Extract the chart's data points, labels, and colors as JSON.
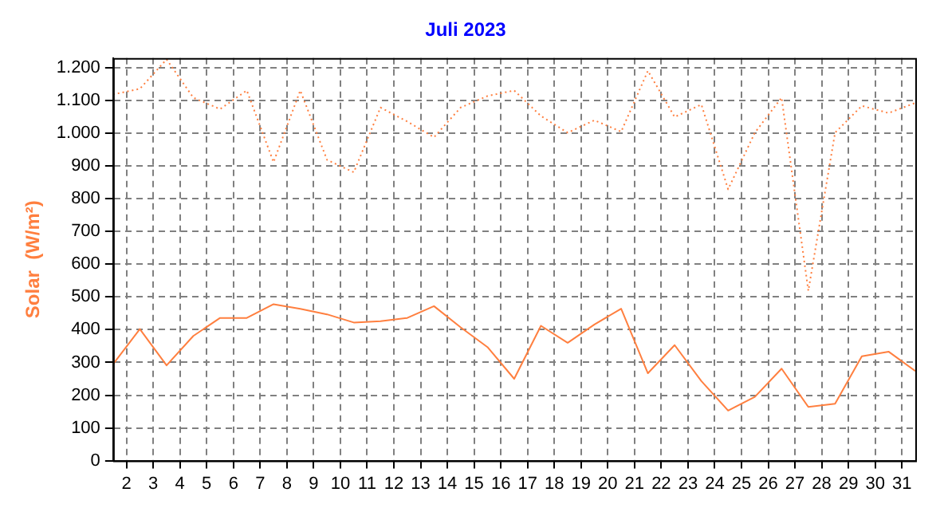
{
  "chart_data": {
    "type": "line",
    "title": "Juli 2023",
    "ylabel": "Solar  (W/m²)",
    "x": [
      1.5,
      2.5,
      3.5,
      4.5,
      5.5,
      6.5,
      7.5,
      8.5,
      9.5,
      10.5,
      11.5,
      12.5,
      13.5,
      14.5,
      15.5,
      16.5,
      17.5,
      18.5,
      19.5,
      20.5,
      21.5,
      22.5,
      23.5,
      24.5,
      25.5,
      26.5,
      27.5,
      28.5,
      29.5,
      30.5,
      31.5
    ],
    "series": [
      {
        "color": "#ff7f3f",
        "line_style": "dotted",
        "values": [
          1119,
          1136,
          1226,
          1109,
          1074,
          1131,
          912,
          1131,
          919,
          881,
          1079,
          1036,
          988,
          1079,
          1114,
          1131,
          1053,
          1002,
          1040,
          1005,
          1191,
          1050,
          1088,
          829,
          1002,
          1109,
          519,
          1002,
          1084,
          1062,
          1093
        ]
      },
      {
        "color": "#ff7f3f",
        "line_style": "solid",
        "values": [
          295,
          402,
          291,
          381,
          436,
          436,
          478,
          464,
          447,
          422,
          426,
          436,
          472,
          407,
          347,
          250,
          412,
          360,
          416,
          464,
          267,
          353,
          243,
          153,
          195,
          281,
          164,
          174,
          319,
          333,
          274
        ]
      }
    ],
    "xlim": [
      1.5,
      31.5
    ],
    "xticks": [
      2,
      3,
      4,
      5,
      6,
      7,
      8,
      9,
      10,
      11,
      12,
      13,
      14,
      15,
      16,
      17,
      18,
      19,
      20,
      21,
      22,
      23,
      24,
      25,
      26,
      27,
      28,
      29,
      30,
      31
    ],
    "ylim": [
      0,
      1230
    ],
    "yticks": [
      0,
      100,
      200,
      300,
      400,
      500,
      600,
      700,
      800,
      900,
      {
        "value": 1000,
        "label": "1.000"
      },
      {
        "value": 1100,
        "label": "1.100"
      },
      {
        "value": 1200,
        "label": "1.200"
      }
    ],
    "grid": true,
    "legend": false,
    "marker": "none"
  }
}
